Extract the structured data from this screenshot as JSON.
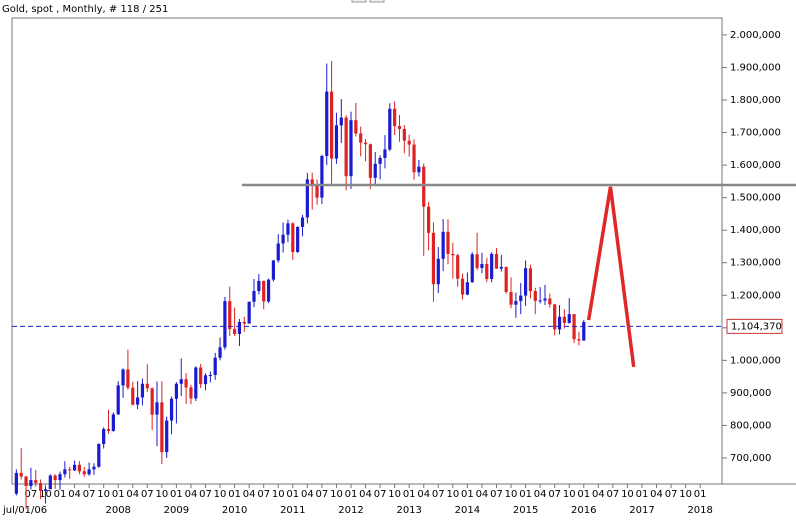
{
  "chart_data": {
    "type": "candlestick",
    "title": "Gold, spot , Monthly, # 118 / 251",
    "start_label": "jul/01/06",
    "up_color": "#1a1ad0",
    "down_color": "#dd2222",
    "xlim": [
      2.1,
      148.5
    ],
    "ylim": [
      620000,
      2052000
    ],
    "yticks": [
      {
        "value": 700000,
        "label": "700,000"
      },
      {
        "value": 800000,
        "label": "800,000"
      },
      {
        "value": 900000,
        "label": "900,000"
      },
      {
        "value": 1000000,
        "label": "1.000,000"
      },
      {
        "value": 1100000,
        "label": "1.100,000"
      },
      {
        "value": 1200000,
        "label": "1.200,000"
      },
      {
        "value": 1300000,
        "label": "1.300,000"
      },
      {
        "value": 1400000,
        "label": "1.400,000"
      },
      {
        "value": 1500000,
        "label": "1.500,000"
      },
      {
        "value": 1600000,
        "label": "1.600,000"
      },
      {
        "value": 1700000,
        "label": "1.700,000"
      },
      {
        "value": 1800000,
        "label": "1.800,000"
      },
      {
        "value": 1900000,
        "label": "1.900,000"
      },
      {
        "value": 2000000,
        "label": "2.000,000"
      }
    ],
    "xticks": [
      {
        "value": 6,
        "label": "07"
      },
      {
        "value": 9,
        "label": "10"
      },
      {
        "value": 12,
        "label": "01"
      },
      {
        "value": 15,
        "label": "04"
      },
      {
        "value": 18,
        "label": "07"
      },
      {
        "value": 21,
        "label": "10"
      },
      {
        "value": 24,
        "label": "01"
      },
      {
        "value": 27,
        "label": "04"
      },
      {
        "value": 30,
        "label": "07"
      },
      {
        "value": 33,
        "label": "10"
      },
      {
        "value": 36,
        "label": "01"
      },
      {
        "value": 39,
        "label": "04"
      },
      {
        "value": 42,
        "label": "07"
      },
      {
        "value": 45,
        "label": "10"
      },
      {
        "value": 48,
        "label": "01"
      },
      {
        "value": 51,
        "label": "04"
      },
      {
        "value": 54,
        "label": "07"
      },
      {
        "value": 57,
        "label": "10"
      },
      {
        "value": 60,
        "label": "01"
      },
      {
        "value": 63,
        "label": "04"
      },
      {
        "value": 66,
        "label": "07"
      },
      {
        "value": 69,
        "label": "10"
      },
      {
        "value": 72,
        "label": "01"
      },
      {
        "value": 75,
        "label": "04"
      },
      {
        "value": 78,
        "label": "07"
      },
      {
        "value": 81,
        "label": "10"
      },
      {
        "value": 84,
        "label": "01"
      },
      {
        "value": 87,
        "label": "04"
      },
      {
        "value": 90,
        "label": "07"
      },
      {
        "value": 93,
        "label": "10"
      },
      {
        "value": 96,
        "label": "01"
      },
      {
        "value": 99,
        "label": "04"
      },
      {
        "value": 102,
        "label": "07"
      },
      {
        "value": 105,
        "label": "10"
      },
      {
        "value": 108,
        "label": "01"
      },
      {
        "value": 111,
        "label": "04"
      },
      {
        "value": 114,
        "label": "07"
      },
      {
        "value": 117,
        "label": "10"
      },
      {
        "value": 120,
        "label": "01"
      },
      {
        "value": 123,
        "label": "04"
      },
      {
        "value": 126,
        "label": "07"
      },
      {
        "value": 129,
        "label": "10"
      },
      {
        "value": 132,
        "label": "01"
      },
      {
        "value": 135,
        "label": "04"
      },
      {
        "value": 138,
        "label": "07"
      },
      {
        "value": 141,
        "label": "10"
      },
      {
        "value": 144,
        "label": "01"
      }
    ],
    "year_ticks": [
      {
        "value": 24,
        "label": "2008"
      },
      {
        "value": 36,
        "label": "2009"
      },
      {
        "value": 48,
        "label": "2010"
      },
      {
        "value": 60,
        "label": "2011"
      },
      {
        "value": 72,
        "label": "2012"
      },
      {
        "value": 84,
        "label": "2013"
      },
      {
        "value": 96,
        "label": "2014"
      },
      {
        "value": 108,
        "label": "2015"
      },
      {
        "value": 120,
        "label": "2016"
      },
      {
        "value": 132,
        "label": "2017"
      },
      {
        "value": 144,
        "label": "2018"
      }
    ],
    "x": [
      3,
      4,
      5,
      6,
      7,
      8,
      9,
      10,
      11,
      12,
      13,
      14,
      15,
      16,
      17,
      18,
      19,
      20,
      21,
      22,
      23,
      24,
      25,
      26,
      27,
      28,
      29,
      30,
      31,
      32,
      33,
      34,
      35,
      36,
      37,
      38,
      39,
      40,
      41,
      42,
      43,
      44,
      45,
      46,
      47,
      48,
      49,
      50,
      51,
      52,
      53,
      54,
      55,
      56,
      57,
      58,
      59,
      60,
      61,
      62,
      63,
      64,
      65,
      66,
      67,
      68,
      69,
      70,
      71,
      72,
      73,
      74,
      75,
      76,
      77,
      78,
      79,
      80,
      81,
      82,
      83,
      84,
      85,
      86,
      87,
      88,
      89,
      90,
      91,
      92,
      93,
      94,
      95,
      96,
      97,
      98,
      99,
      100,
      101,
      102,
      103,
      104,
      105,
      106,
      107,
      108,
      109,
      110,
      111,
      112,
      113,
      114,
      115,
      116,
      117,
      118,
      119,
      120
    ],
    "open": [
      590000,
      654000,
      643000,
      614000,
      632000,
      623000,
      599000,
      604000,
      646000,
      632000,
      650000,
      665000,
      662000,
      679000,
      659000,
      650000,
      665000,
      673000,
      743000,
      789000,
      783000,
      834000,
      923000,
      972000,
      916000,
      864000,
      886000,
      928000,
      914000,
      833000,
      871000,
      718000,
      815000,
      882000,
      928000,
      942000,
      917000,
      883000,
      978000,
      927000,
      954000,
      955000,
      1008000,
      1040000,
      1182000,
      1096000,
      1081000,
      1118000,
      1113000,
      1180000,
      1213000,
      1244000,
      1181000,
      1248000,
      1307000,
      1359000,
      1386000,
      1421000,
      1333000,
      1410000,
      1439000,
      1556000,
      1536000,
      1500000,
      1628000,
      1826000,
      1620000,
      1722000,
      1746000,
      1566000,
      1738000,
      1697000,
      1669000,
      1664000,
      1561000,
      1604000,
      1622000,
      1648000,
      1773000,
      1720000,
      1711000,
      1675000,
      1663000,
      1578000,
      1595000,
      1472000,
      1392000,
      1234000,
      1312000,
      1395000,
      1327000,
      1323000,
      1251000,
      1202000,
      1240000,
      1326000,
      1284000,
      1296000,
      1250000,
      1327000,
      1282000,
      1287000,
      1210000,
      1171000,
      1182000,
      1199000,
      1283000,
      1213000,
      1183000,
      1184000,
      1190000,
      1172000,
      1095000,
      1134000,
      1115000,
      1142000,
      1065000,
      1061000
    ],
    "high": [
      665000,
      730000,
      645000,
      670000,
      663000,
      634000,
      612000,
      650000,
      650000,
      658000,
      690000,
      673000,
      692000,
      690000,
      672000,
      686000,
      684000,
      745000,
      794000,
      848000,
      840000,
      936000,
      975000,
      1033000,
      934000,
      936000,
      944000,
      988000,
      917000,
      935000,
      936000,
      827000,
      889000,
      933000,
      1006000,
      961000,
      925000,
      982000,
      989000,
      960000,
      966000,
      1023000,
      1070000,
      1195000,
      1227000,
      1162000,
      1127000,
      1134000,
      1181000,
      1250000,
      1265000,
      1245000,
      1251000,
      1308000,
      1388000,
      1424000,
      1432000,
      1424000,
      1412000,
      1447000,
      1576000,
      1577000,
      1556000,
      1632000,
      1912000,
      1920000,
      1761000,
      1803000,
      1753000,
      1764000,
      1791000,
      1718000,
      1680000,
      1666000,
      1640000,
      1630000,
      1692000,
      1790000,
      1796000,
      1754000,
      1723000,
      1694000,
      1679000,
      1616000,
      1605000,
      1487000,
      1424000,
      1348000,
      1434000,
      1433000,
      1361000,
      1327000,
      1267000,
      1270000,
      1332000,
      1392000,
      1331000,
      1315000,
      1332000,
      1345000,
      1324000,
      1288000,
      1255000,
      1208000,
      1238000,
      1307000,
      1294000,
      1223000,
      1225000,
      1232000,
      1205000,
      1174000,
      1170000,
      1157000,
      1191000,
      1142000,
      1088000,
      1124000
    ],
    "low": [
      585000,
      634000,
      543000,
      603000,
      612000,
      573000,
      560000,
      604000,
      605000,
      602000,
      640000,
      636000,
      660000,
      650000,
      642000,
      645000,
      648000,
      670000,
      729000,
      774000,
      781000,
      832000,
      885000,
      910000,
      861000,
      850000,
      862000,
      903000,
      786000,
      736000,
      681000,
      700000,
      773000,
      806000,
      890000,
      866000,
      865000,
      875000,
      915000,
      908000,
      932000,
      940000,
      1000000,
      1033000,
      1075000,
      1075000,
      1044000,
      1088000,
      1113000,
      1163000,
      1203000,
      1157000,
      1176000,
      1242000,
      1300000,
      1331000,
      1363000,
      1309000,
      1330000,
      1381000,
      1421000,
      1463000,
      1478000,
      1480000,
      1600000,
      1535000,
      1604000,
      1668000,
      1523000,
      1527000,
      1688000,
      1627000,
      1612000,
      1527000,
      1540000,
      1556000,
      1590000,
      1643000,
      1692000,
      1672000,
      1636000,
      1626000,
      1555000,
      1565000,
      1321000,
      1338000,
      1180000,
      1207000,
      1274000,
      1295000,
      1251000,
      1226000,
      1187000,
      1200000,
      1238000,
      1277000,
      1268000,
      1240000,
      1240000,
      1281000,
      1273000,
      1205000,
      1160000,
      1131000,
      1142000,
      1167000,
      1190000,
      1142000,
      1175000,
      1170000,
      1162000,
      1077000,
      1080000,
      1098000,
      1113000,
      1053000,
      1046000,
      1060000
    ],
    "close": [
      654000,
      643000,
      614000,
      632000,
      623000,
      599000,
      604000,
      646000,
      632000,
      650000,
      665000,
      662000,
      679000,
      659000,
      650000,
      665000,
      673000,
      743000,
      789000,
      783000,
      834000,
      923000,
      972000,
      916000,
      864000,
      886000,
      928000,
      914000,
      833000,
      871000,
      718000,
      815000,
      882000,
      928000,
      942000,
      917000,
      883000,
      978000,
      927000,
      954000,
      955000,
      1008000,
      1040000,
      1182000,
      1096000,
      1081000,
      1118000,
      1113000,
      1180000,
      1213000,
      1244000,
      1181000,
      1248000,
      1307000,
      1359000,
      1386000,
      1421000,
      1333000,
      1410000,
      1439000,
      1556000,
      1536000,
      1500000,
      1628000,
      1826000,
      1620000,
      1722000,
      1746000,
      1566000,
      1738000,
      1697000,
      1669000,
      1664000,
      1561000,
      1604000,
      1622000,
      1648000,
      1773000,
      1720000,
      1711000,
      1675000,
      1663000,
      1578000,
      1595000,
      1472000,
      1392000,
      1234000,
      1312000,
      1395000,
      1327000,
      1323000,
      1251000,
      1202000,
      1240000,
      1326000,
      1284000,
      1296000,
      1250000,
      1327000,
      1282000,
      1287000,
      1210000,
      1171000,
      1182000,
      1199000,
      1283000,
      1213000,
      1183000,
      1184000,
      1190000,
      1172000,
      1095000,
      1134000,
      1115000,
      1142000,
      1065000,
      1061000,
      1118000
    ],
    "last_price": {
      "value": 1104370,
      "label": "1,104,370",
      "color": "#2020c0"
    },
    "horizontal_line": {
      "value": 1539000,
      "x_start": 49.5,
      "color": "#888888"
    },
    "drawn_path": {
      "x": [
        121,
        125.5,
        130.3
      ],
      "values": [
        1124000,
        1533000,
        980000
      ],
      "color": "#e02828"
    }
  }
}
